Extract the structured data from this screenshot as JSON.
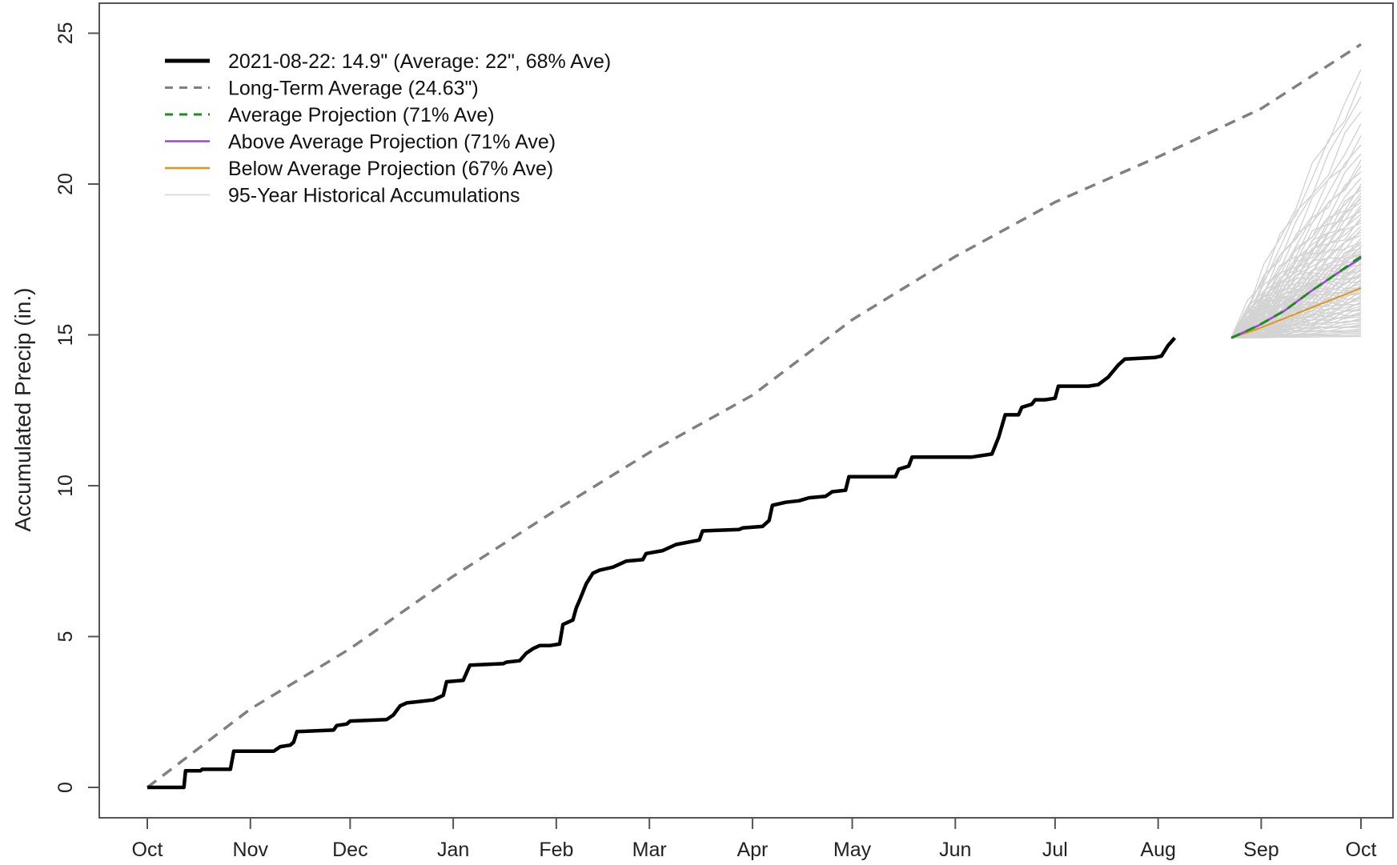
{
  "chart_data": {
    "type": "line",
    "title": "",
    "xlabel": "",
    "ylabel": "Accumulated Precip (in.)",
    "x_ticks": [
      "Oct",
      "Nov",
      "Dec",
      "Jan",
      "Feb",
      "Mar",
      "Apr",
      "May",
      "Jun",
      "Jul",
      "Aug",
      "Sep",
      "Oct"
    ],
    "x_range_days": [
      0,
      365
    ],
    "y_ticks": [
      0,
      5,
      10,
      15,
      20,
      25
    ],
    "ylim": [
      -1,
      26
    ],
    "grid": false,
    "legend_position": "top-left",
    "colors": {
      "observed": "#000000",
      "long_term_average": "#808080",
      "average_projection": "#1e8c1e",
      "above_average_projection": "#a040e0",
      "below_average_projection": "#e0961e",
      "historical": "#d3d3d3",
      "axis": "#555555"
    },
    "legend": [
      {
        "key": "observed",
        "label": "2021-08-22: 14.9\" (Average: 22\", 68% Ave)",
        "style": "solid-thick"
      },
      {
        "key": "long_term_average",
        "label": "Long-Term Average (24.63\")",
        "style": "dashed"
      },
      {
        "key": "average_projection",
        "label": "Average Projection (71% Ave)",
        "style": "dashed"
      },
      {
        "key": "above_average_projection",
        "label": "Above Average Projection (71% Ave)",
        "style": "solid"
      },
      {
        "key": "below_average_projection",
        "label": "Below Average Projection (67% Ave)",
        "style": "solid"
      },
      {
        "key": "historical",
        "label": "95-Year Historical Accumulations",
        "style": "solid-thin"
      }
    ],
    "series": [
      {
        "name": "Long-Term Average (24.63\")",
        "key": "long_term_average",
        "points": [
          [
            0,
            0
          ],
          [
            31,
            2.6
          ],
          [
            61,
            4.6
          ],
          [
            92,
            7.0
          ],
          [
            123,
            9.2
          ],
          [
            151,
            11.1
          ],
          [
            182,
            13.0
          ],
          [
            212,
            15.5
          ],
          [
            243,
            17.6
          ],
          [
            273,
            19.4
          ],
          [
            304,
            20.9
          ],
          [
            335,
            22.5
          ],
          [
            365,
            24.63
          ]
        ]
      },
      {
        "name": "2021-08-22: 14.9\" (Average: 22\", 68% Ave)",
        "key": "observed",
        "points": [
          [
            0,
            0
          ],
          [
            11,
            0
          ],
          [
            11.5,
            0.55
          ],
          [
            16,
            0.55
          ],
          [
            16.5,
            0.6
          ],
          [
            25,
            0.6
          ],
          [
            26,
            1.2
          ],
          [
            38,
            1.2
          ],
          [
            40,
            1.35
          ],
          [
            43,
            1.4
          ],
          [
            44,
            1.5
          ],
          [
            45,
            1.85
          ],
          [
            56,
            1.9
          ],
          [
            57,
            2.05
          ],
          [
            60,
            2.1
          ],
          [
            61,
            2.2
          ],
          [
            72,
            2.25
          ],
          [
            74,
            2.4
          ],
          [
            76,
            2.7
          ],
          [
            78,
            2.8
          ],
          [
            82,
            2.85
          ],
          [
            86,
            2.9
          ],
          [
            89,
            3.05
          ],
          [
            90,
            3.5
          ],
          [
            95,
            3.55
          ],
          [
            97,
            4.05
          ],
          [
            107,
            4.1
          ],
          [
            108,
            4.15
          ],
          [
            112,
            4.2
          ],
          [
            114,
            4.45
          ],
          [
            116,
            4.6
          ],
          [
            118,
            4.7
          ],
          [
            121,
            4.7
          ],
          [
            124,
            4.75
          ],
          [
            125,
            5.4
          ],
          [
            128,
            5.55
          ],
          [
            129,
            5.95
          ],
          [
            130,
            6.2
          ],
          [
            132,
            6.75
          ],
          [
            134,
            7.1
          ],
          [
            136,
            7.2
          ],
          [
            140,
            7.3
          ],
          [
            144,
            7.5
          ],
          [
            149,
            7.55
          ],
          [
            150,
            7.75
          ],
          [
            155,
            7.85
          ],
          [
            159,
            8.05
          ],
          [
            166,
            8.2
          ],
          [
            167,
            8.5
          ],
          [
            178,
            8.55
          ],
          [
            179,
            8.6
          ],
          [
            185,
            8.65
          ],
          [
            187,
            8.85
          ],
          [
            188,
            9.35
          ],
          [
            192,
            9.45
          ],
          [
            196,
            9.5
          ],
          [
            199,
            9.6
          ],
          [
            204,
            9.65
          ],
          [
            206,
            9.8
          ],
          [
            210,
            9.85
          ],
          [
            211,
            10.3
          ],
          [
            225,
            10.3
          ],
          [
            226,
            10.55
          ],
          [
            229,
            10.65
          ],
          [
            230,
            10.95
          ],
          [
            248,
            10.95
          ],
          [
            254,
            11.05
          ],
          [
            256,
            11.6
          ],
          [
            258,
            12.35
          ],
          [
            262,
            12.35
          ],
          [
            263,
            12.6
          ],
          [
            266,
            12.7
          ],
          [
            267,
            12.85
          ],
          [
            270,
            12.85
          ],
          [
            273,
            12.9
          ],
          [
            274,
            13.3
          ],
          [
            283,
            13.3
          ],
          [
            286,
            13.35
          ],
          [
            289,
            13.6
          ],
          [
            292,
            14.0
          ],
          [
            294,
            14.2
          ],
          [
            303,
            14.25
          ],
          [
            305,
            14.3
          ],
          [
            307,
            14.65
          ],
          [
            309,
            14.9
          ]
        ]
      },
      {
        "name": "Average Projection (71% Ave)",
        "key": "average_projection",
        "points": [
          [
            326,
            14.9
          ],
          [
            334,
            15.3
          ],
          [
            342,
            15.8
          ],
          [
            350,
            16.45
          ],
          [
            358,
            17.05
          ],
          [
            365,
            17.6
          ]
        ]
      },
      {
        "name": "Above Average Projection (71% Ave)",
        "key": "above_average_projection",
        "points": [
          [
            326,
            14.9
          ],
          [
            334,
            15.3
          ],
          [
            342,
            15.8
          ],
          [
            350,
            16.45
          ],
          [
            358,
            17.05
          ],
          [
            365,
            17.55
          ]
        ]
      },
      {
        "name": "Below Average Projection (67% Ave)",
        "key": "below_average_projection",
        "points": [
          [
            326,
            14.9
          ],
          [
            334,
            15.2
          ],
          [
            342,
            15.55
          ],
          [
            350,
            15.9
          ],
          [
            358,
            16.25
          ],
          [
            365,
            16.55
          ]
        ]
      }
    ],
    "historical": {
      "name": "95-Year Historical Accumulations",
      "start": [
        326,
        14.9
      ],
      "end_day": 365,
      "end_values": [
        14.95,
        15.0,
        15.05,
        15.1,
        15.15,
        15.2,
        15.25,
        15.3,
        15.35,
        15.4,
        15.45,
        15.5,
        15.55,
        15.6,
        15.65,
        15.7,
        15.75,
        15.8,
        15.85,
        15.9,
        15.95,
        16.0,
        16.05,
        16.1,
        16.15,
        16.2,
        16.25,
        16.3,
        16.35,
        16.4,
        16.45,
        16.5,
        16.55,
        16.6,
        16.65,
        16.7,
        16.75,
        16.8,
        16.85,
        16.9,
        16.95,
        17.0,
        17.05,
        17.1,
        17.15,
        17.2,
        17.25,
        17.3,
        17.35,
        17.4,
        17.45,
        17.5,
        17.55,
        17.6,
        17.65,
        17.7,
        17.75,
        17.8,
        17.85,
        17.9,
        17.95,
        18.0,
        18.05,
        18.1,
        18.2,
        18.3,
        18.4,
        18.5,
        18.6,
        18.7,
        18.8,
        18.9,
        19.0,
        19.1,
        19.2,
        19.3,
        19.4,
        19.5,
        19.6,
        19.7,
        19.8,
        19.9,
        20.0,
        20.2,
        20.4,
        20.6,
        20.8,
        21.0,
        21.3,
        21.6,
        22.0,
        22.4,
        22.9,
        23.4,
        23.8
      ]
    }
  }
}
